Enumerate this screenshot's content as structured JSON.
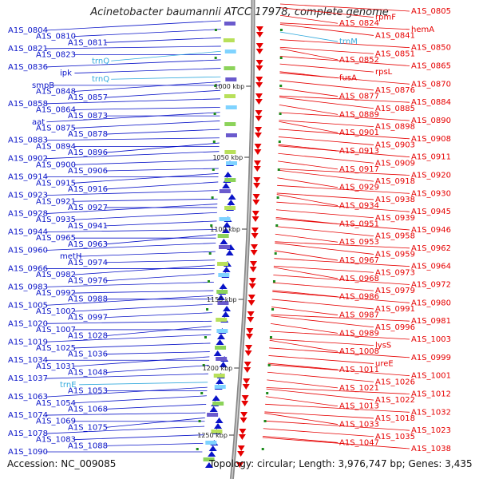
{
  "title": "Acinetobacter baumannii ATCC 17978, complete genome",
  "accession": "Accession: NC_009085",
  "topology": "Topology: circular; Length: 3,976,747 bp; Genes: 3,435",
  "colors": {
    "forward": "#0a14c8",
    "reverse": "#e60000",
    "trna": "#33aadd",
    "backbone": "#8a8a8a"
  },
  "kbp_ticks": [
    "1000 kbp",
    "1050 kbp",
    "1100 kbp",
    "1150 kbp",
    "1200 kbp",
    "1250 kbp"
  ],
  "left_labels": [
    {
      "t": "A1S_0804",
      "c": "forward"
    },
    {
      "t": "A1S_0810",
      "c": "forward"
    },
    {
      "t": "A1S_0811",
      "c": "forward"
    },
    {
      "t": "A1S_0821",
      "c": "forward"
    },
    {
      "t": "A1S_0823",
      "c": "forward"
    },
    {
      "t": "trnQ",
      "c": "trna"
    },
    {
      "t": "A1S_0836",
      "c": "forward"
    },
    {
      "t": "ipk",
      "c": "forward"
    },
    {
      "t": "trnQ",
      "c": "trna"
    },
    {
      "t": "smpB",
      "c": "forward"
    },
    {
      "t": "A1S_0848",
      "c": "forward"
    },
    {
      "t": "A1S_0857",
      "c": "forward"
    },
    {
      "t": "A1S_0858",
      "c": "forward"
    },
    {
      "t": "A1S_0864",
      "c": "forward"
    },
    {
      "t": "A1S_0873",
      "c": "forward"
    },
    {
      "t": "aat",
      "c": "forward"
    },
    {
      "t": "A1S_0875",
      "c": "forward"
    },
    {
      "t": "A1S_0878",
      "c": "forward"
    },
    {
      "t": "A1S_0883",
      "c": "forward"
    },
    {
      "t": "A1S_0894",
      "c": "forward"
    },
    {
      "t": "A1S_0896",
      "c": "forward"
    },
    {
      "t": "A1S_0902",
      "c": "forward"
    },
    {
      "t": "A1S_0900",
      "c": "forward"
    },
    {
      "t": "A1S_0906",
      "c": "forward"
    },
    {
      "t": "A1S_0914",
      "c": "forward"
    },
    {
      "t": "A1S_0915",
      "c": "forward"
    },
    {
      "t": "A1S_0916",
      "c": "forward"
    },
    {
      "t": "A1S_0923",
      "c": "forward"
    },
    {
      "t": "A1S_0921",
      "c": "forward"
    },
    {
      "t": "A1S_0927",
      "c": "forward"
    },
    {
      "t": "A1S_0928",
      "c": "forward"
    },
    {
      "t": "A1S_0935",
      "c": "forward"
    },
    {
      "t": "A1S_0941",
      "c": "forward"
    },
    {
      "t": "A1S_0944",
      "c": "forward"
    },
    {
      "t": "A1S_0965",
      "c": "forward"
    },
    {
      "t": "A1S_0963",
      "c": "forward"
    },
    {
      "t": "A1S_0960",
      "c": "forward"
    },
    {
      "t": "metH",
      "c": "forward"
    },
    {
      "t": "A1S_0974",
      "c": "forward"
    },
    {
      "t": "A1S_0966",
      "c": "forward"
    },
    {
      "t": "A1S_0982",
      "c": "forward"
    },
    {
      "t": "A1S_0976",
      "c": "forward"
    },
    {
      "t": "A1S_0983",
      "c": "forward"
    },
    {
      "t": "A1S_0992",
      "c": "forward"
    },
    {
      "t": "A1S_0988",
      "c": "forward"
    },
    {
      "t": "A1S_1005",
      "c": "forward"
    },
    {
      "t": "A1S_1002",
      "c": "forward"
    },
    {
      "t": "A1S_0997",
      "c": "forward"
    },
    {
      "t": "A1S_1020",
      "c": "forward"
    },
    {
      "t": "A1S_1007",
      "c": "forward"
    },
    {
      "t": "A1S_1028",
      "c": "forward"
    },
    {
      "t": "A1S_1019",
      "c": "forward"
    },
    {
      "t": "A1S_1025",
      "c": "forward"
    },
    {
      "t": "A1S_1036",
      "c": "forward"
    },
    {
      "t": "A1S_1034",
      "c": "forward"
    },
    {
      "t": "A1S_1031",
      "c": "forward"
    },
    {
      "t": "A1S_1048",
      "c": "forward"
    },
    {
      "t": "A1S_1037",
      "c": "forward"
    },
    {
      "t": "trnE",
      "c": "trna"
    },
    {
      "t": "A1S_1053",
      "c": "forward"
    },
    {
      "t": "A1S_1063",
      "c": "forward"
    },
    {
      "t": "A1S_1054",
      "c": "forward"
    },
    {
      "t": "A1S_1068",
      "c": "forward"
    },
    {
      "t": "A1S_1074",
      "c": "forward"
    },
    {
      "t": "A1S_1069",
      "c": "forward"
    },
    {
      "t": "A1S_1075",
      "c": "forward"
    },
    {
      "t": "A1S_1078",
      "c": "forward"
    },
    {
      "t": "A1S_1083",
      "c": "forward"
    },
    {
      "t": "A1S_1088",
      "c": "forward"
    },
    {
      "t": "A1S_1090",
      "c": "forward"
    }
  ],
  "right_labels": [
    {
      "t": "A1S_0805",
      "c": "reverse"
    },
    {
      "t": "rpmF",
      "c": "reverse"
    },
    {
      "t": "A1S_0824",
      "c": "reverse"
    },
    {
      "t": "hemA",
      "c": "reverse"
    },
    {
      "t": "A1S_0841",
      "c": "reverse"
    },
    {
      "t": "trnM",
      "c": "trna"
    },
    {
      "t": "A1S_0850",
      "c": "reverse"
    },
    {
      "t": "A1S_0851",
      "c": "reverse"
    },
    {
      "t": "A1S_0852",
      "c": "reverse"
    },
    {
      "t": "A1S_0865",
      "c": "reverse"
    },
    {
      "t": "rpsL",
      "c": "reverse"
    },
    {
      "t": "fusA",
      "c": "reverse"
    },
    {
      "t": "A1S_0870",
      "c": "reverse"
    },
    {
      "t": "A1S_0876",
      "c": "reverse"
    },
    {
      "t": "A1S_0877",
      "c": "reverse"
    },
    {
      "t": "A1S_0884",
      "c": "reverse"
    },
    {
      "t": "A1S_0885",
      "c": "reverse"
    },
    {
      "t": "A1S_0889",
      "c": "reverse"
    },
    {
      "t": "A1S_0890",
      "c": "reverse"
    },
    {
      "t": "A1S_0898",
      "c": "reverse"
    },
    {
      "t": "A1S_0901",
      "c": "reverse"
    },
    {
      "t": "A1S_0908",
      "c": "reverse"
    },
    {
      "t": "A1S_0903",
      "c": "reverse"
    },
    {
      "t": "A1S_0913",
      "c": "reverse"
    },
    {
      "t": "A1S_0911",
      "c": "reverse"
    },
    {
      "t": "A1S_0909",
      "c": "reverse"
    },
    {
      "t": "A1S_0917",
      "c": "reverse"
    },
    {
      "t": "A1S_0920",
      "c": "reverse"
    },
    {
      "t": "A1S_0918",
      "c": "reverse"
    },
    {
      "t": "A1S_0929",
      "c": "reverse"
    },
    {
      "t": "A1S_0930",
      "c": "reverse"
    },
    {
      "t": "A1S_0938",
      "c": "reverse"
    },
    {
      "t": "A1S_0934",
      "c": "reverse"
    },
    {
      "t": "A1S_0945",
      "c": "reverse"
    },
    {
      "t": "A1S_0939",
      "c": "reverse"
    },
    {
      "t": "A1S_0951",
      "c": "reverse"
    },
    {
      "t": "A1S_0946",
      "c": "reverse"
    },
    {
      "t": "A1S_0958",
      "c": "reverse"
    },
    {
      "t": "A1S_0953",
      "c": "reverse"
    },
    {
      "t": "A1S_0962",
      "c": "reverse"
    },
    {
      "t": "A1S_0959",
      "c": "reverse"
    },
    {
      "t": "A1S_0967",
      "c": "reverse"
    },
    {
      "t": "A1S_0964",
      "c": "reverse"
    },
    {
      "t": "A1S_0973",
      "c": "reverse"
    },
    {
      "t": "A1S_0968",
      "c": "reverse"
    },
    {
      "t": "A1S_0972",
      "c": "reverse"
    },
    {
      "t": "A1S_0979",
      "c": "reverse"
    },
    {
      "t": "A1S_0986",
      "c": "reverse"
    },
    {
      "t": "A1S_0980",
      "c": "reverse"
    },
    {
      "t": "A1S_0991",
      "c": "reverse"
    },
    {
      "t": "A1S_0987",
      "c": "reverse"
    },
    {
      "t": "A1S_0981",
      "c": "reverse"
    },
    {
      "t": "A1S_0996",
      "c": "reverse"
    },
    {
      "t": "A1S_0989",
      "c": "reverse"
    },
    {
      "t": "A1S_1003",
      "c": "reverse"
    },
    {
      "t": "lysS",
      "c": "reverse"
    },
    {
      "t": "A1S_1008",
      "c": "reverse"
    },
    {
      "t": "A1S_0999",
      "c": "reverse"
    },
    {
      "t": "ureE",
      "c": "reverse"
    },
    {
      "t": "A1S_1011",
      "c": "reverse"
    },
    {
      "t": "A1S_1001",
      "c": "reverse"
    },
    {
      "t": "A1S_1026",
      "c": "reverse"
    },
    {
      "t": "A1S_1021",
      "c": "reverse"
    },
    {
      "t": "A1S_1012",
      "c": "reverse"
    },
    {
      "t": "A1S_1022",
      "c": "reverse"
    },
    {
      "t": "A1S_1013",
      "c": "reverse"
    },
    {
      "t": "A1S_1032",
      "c": "reverse"
    },
    {
      "t": "A1S_1018",
      "c": "reverse"
    },
    {
      "t": "A1S_1033",
      "c": "reverse"
    },
    {
      "t": "A1S_1023",
      "c": "reverse"
    },
    {
      "t": "A1S_1035",
      "c": "reverse"
    },
    {
      "t": "A1S_1047",
      "c": "reverse"
    },
    {
      "t": "A1S_1038",
      "c": "reverse"
    }
  ]
}
